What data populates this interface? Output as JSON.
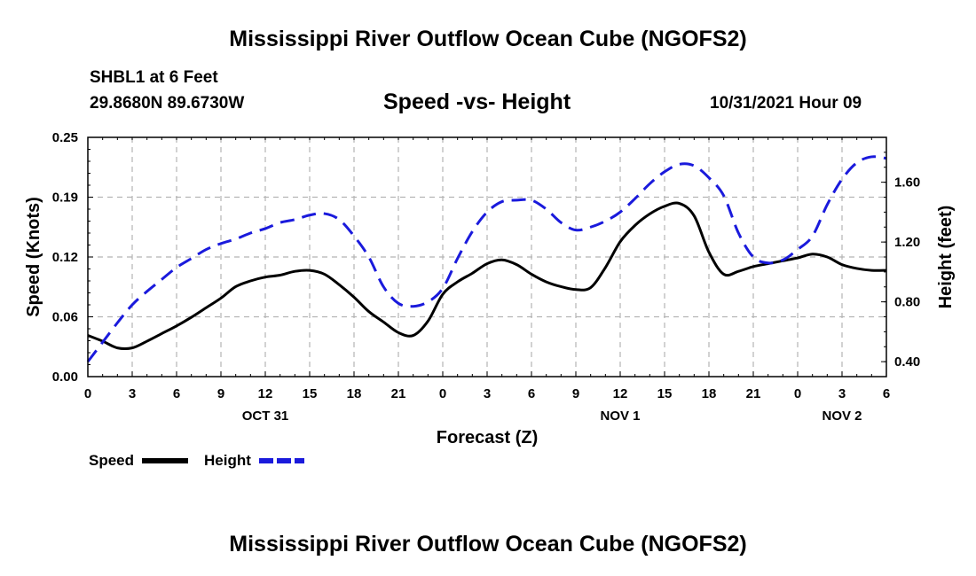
{
  "header": {
    "title": "Mississippi River Outflow Ocean Cube (NGOFS2)",
    "station": "SHBL1 at 6 Feet",
    "coords": "29.8680N  89.6730W",
    "subtitle": "Speed -vs- Height",
    "datetime": "10/31/2021 Hour 09"
  },
  "footer": {
    "title": "Mississippi River Outflow Ocean Cube (NGOFS2)"
  },
  "colors": {
    "speed": "#000000",
    "height": "#1a1adc",
    "grid": "#b4b4b4"
  },
  "chart_data": {
    "type": "line",
    "xlabel": "Forecast (Z)",
    "ylabel_left": "Speed (Knots)",
    "ylabel_right": "Height (feet)",
    "x_range": [
      0,
      54
    ],
    "x_ticks": [
      {
        "h": 0,
        "label": "0"
      },
      {
        "h": 3,
        "label": "3"
      },
      {
        "h": 6,
        "label": "6"
      },
      {
        "h": 9,
        "label": "9"
      },
      {
        "h": 12,
        "label": "12"
      },
      {
        "h": 15,
        "label": "15"
      },
      {
        "h": 18,
        "label": "18"
      },
      {
        "h": 21,
        "label": "21"
      },
      {
        "h": 24,
        "label": "0"
      },
      {
        "h": 27,
        "label": "3"
      },
      {
        "h": 30,
        "label": "6"
      },
      {
        "h": 33,
        "label": "9"
      },
      {
        "h": 36,
        "label": "12"
      },
      {
        "h": 39,
        "label": "15"
      },
      {
        "h": 42,
        "label": "18"
      },
      {
        "h": 45,
        "label": "21"
      },
      {
        "h": 48,
        "label": "0"
      },
      {
        "h": 51,
        "label": "3"
      },
      {
        "h": 54,
        "label": "6"
      }
    ],
    "day_labels": [
      {
        "h": 12,
        "label": "OCT 31"
      },
      {
        "h": 36,
        "label": "NOV 1"
      },
      {
        "h": 51,
        "label": "NOV 2"
      }
    ],
    "y_left": {
      "min": 0,
      "max": 0.25,
      "ticks": [
        "0.00",
        "0.06",
        "0.12",
        "0.19",
        "0.25"
      ],
      "tick_values": [
        0,
        0.0625,
        0.125,
        0.1875,
        0.25
      ]
    },
    "y_right": {
      "min": 0.3,
      "max": 1.9,
      "ticks": [
        "0.40",
        "0.80",
        "1.20",
        "1.60"
      ],
      "tick_values": [
        0.4,
        0.8,
        1.2,
        1.6
      ]
    },
    "series": [
      {
        "name": "Speed",
        "axis": "left",
        "style": "solid",
        "x": [
          0,
          1,
          2,
          3,
          4,
          5,
          6,
          7,
          8,
          9,
          10,
          11,
          12,
          13,
          14,
          15,
          16,
          17,
          18,
          19,
          20,
          21,
          22,
          23,
          24,
          25,
          26,
          27,
          28,
          29,
          30,
          31,
          32,
          33,
          34,
          35,
          36,
          37,
          38,
          39,
          40,
          41,
          42,
          43,
          44,
          45,
          46,
          47,
          48,
          49,
          50,
          51,
          52,
          53,
          54
        ],
        "values": [
          0.043,
          0.037,
          0.03,
          0.03,
          0.037,
          0.045,
          0.053,
          0.062,
          0.072,
          0.082,
          0.094,
          0.1,
          0.104,
          0.106,
          0.11,
          0.111,
          0.107,
          0.096,
          0.083,
          0.068,
          0.057,
          0.046,
          0.043,
          0.058,
          0.086,
          0.099,
          0.108,
          0.118,
          0.122,
          0.117,
          0.107,
          0.099,
          0.094,
          0.091,
          0.093,
          0.114,
          0.141,
          0.158,
          0.17,
          0.178,
          0.181,
          0.168,
          0.13,
          0.107,
          0.11,
          0.115,
          0.118,
          0.121,
          0.124,
          0.128,
          0.125,
          0.117,
          0.113,
          0.111,
          0.111
        ]
      },
      {
        "name": "Height",
        "axis": "right",
        "style": "dashed",
        "x": [
          0,
          1,
          2,
          3,
          4,
          5,
          6,
          7,
          8,
          9,
          10,
          11,
          12,
          13,
          14,
          15,
          16,
          17,
          18,
          19,
          20,
          21,
          22,
          23,
          24,
          25,
          26,
          27,
          28,
          29,
          30,
          31,
          32,
          33,
          34,
          35,
          36,
          37,
          38,
          39,
          40,
          41,
          42,
          43,
          44,
          45,
          46,
          47,
          48,
          49,
          50,
          51,
          52,
          53,
          54
        ],
        "values": [
          0.4,
          0.53,
          0.66,
          0.78,
          0.87,
          0.95,
          1.03,
          1.09,
          1.15,
          1.19,
          1.22,
          1.26,
          1.29,
          1.33,
          1.35,
          1.38,
          1.39,
          1.35,
          1.24,
          1.1,
          0.9,
          0.79,
          0.77,
          0.8,
          0.89,
          1.09,
          1.27,
          1.4,
          1.47,
          1.48,
          1.48,
          1.42,
          1.33,
          1.28,
          1.3,
          1.34,
          1.4,
          1.49,
          1.59,
          1.67,
          1.72,
          1.71,
          1.63,
          1.51,
          1.26,
          1.1,
          1.06,
          1.08,
          1.15,
          1.24,
          1.45,
          1.62,
          1.73,
          1.77,
          1.76
        ]
      }
    ],
    "legend": [
      {
        "name": "Speed",
        "style": "solid"
      },
      {
        "name": "Height",
        "style": "dashed"
      }
    ],
    "grid": true,
    "legend_position": "bottom-left"
  }
}
